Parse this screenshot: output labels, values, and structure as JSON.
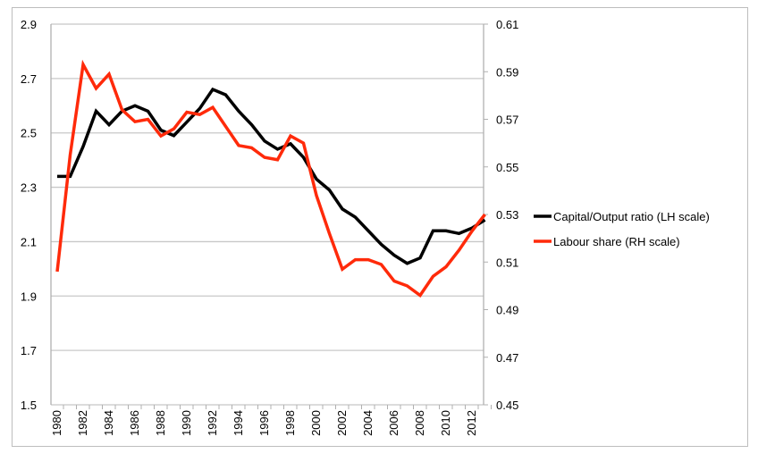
{
  "chart_data": {
    "type": "line",
    "title": "",
    "x": [
      1980,
      1981,
      1982,
      1983,
      1984,
      1985,
      1986,
      1987,
      1988,
      1989,
      1990,
      1991,
      1992,
      1993,
      1994,
      1995,
      1996,
      1997,
      1998,
      1999,
      2000,
      2001,
      2002,
      2003,
      2004,
      2005,
      2006,
      2007,
      2008,
      2009,
      2010,
      2011,
      2012,
      2013
    ],
    "x_tick_labels": [
      "1980",
      "1982",
      "1984",
      "1986",
      "1988",
      "1990",
      "1992",
      "1994",
      "1996",
      "1998",
      "2000",
      "2002",
      "2004",
      "2006",
      "2008",
      "2010",
      "2012"
    ],
    "y_left": {
      "range": [
        1.5,
        2.9
      ],
      "ticks": [
        "1.5",
        "1.7",
        "1.9",
        "2.1",
        "2.3",
        "2.5",
        "2.7",
        "2.9"
      ]
    },
    "y_right": {
      "range": [
        0.45,
        0.61
      ],
      "ticks": [
        "0.45",
        "0.47",
        "0.49",
        "0.51",
        "0.53",
        "0.55",
        "0.57",
        "0.59",
        "0.61"
      ]
    },
    "grid": true,
    "legend_position": "right",
    "series": [
      {
        "name": "Capital/Output ratio (LH scale)",
        "axis": "left",
        "color": "#000000",
        "values": [
          2.34,
          2.34,
          2.45,
          2.58,
          2.53,
          2.58,
          2.6,
          2.58,
          2.51,
          2.49,
          2.54,
          2.59,
          2.66,
          2.64,
          2.58,
          2.53,
          2.47,
          2.44,
          2.46,
          2.41,
          2.33,
          2.29,
          2.22,
          2.19,
          2.14,
          2.09,
          2.05,
          2.02,
          2.04,
          2.14,
          2.14,
          2.13,
          2.15,
          2.18
        ]
      },
      {
        "name": "Labour share (RH scale)",
        "axis": "right",
        "color": "#ff2a0a",
        "values": [
          0.506,
          0.555,
          0.593,
          0.583,
          0.589,
          0.574,
          0.569,
          0.57,
          0.563,
          0.566,
          0.573,
          0.572,
          0.575,
          0.567,
          0.559,
          0.558,
          0.554,
          0.553,
          0.563,
          0.56,
          0.538,
          0.522,
          0.507,
          0.511,
          0.511,
          0.509,
          0.502,
          0.5,
          0.496,
          0.504,
          0.508,
          0.515,
          0.523,
          0.53
        ]
      }
    ]
  }
}
